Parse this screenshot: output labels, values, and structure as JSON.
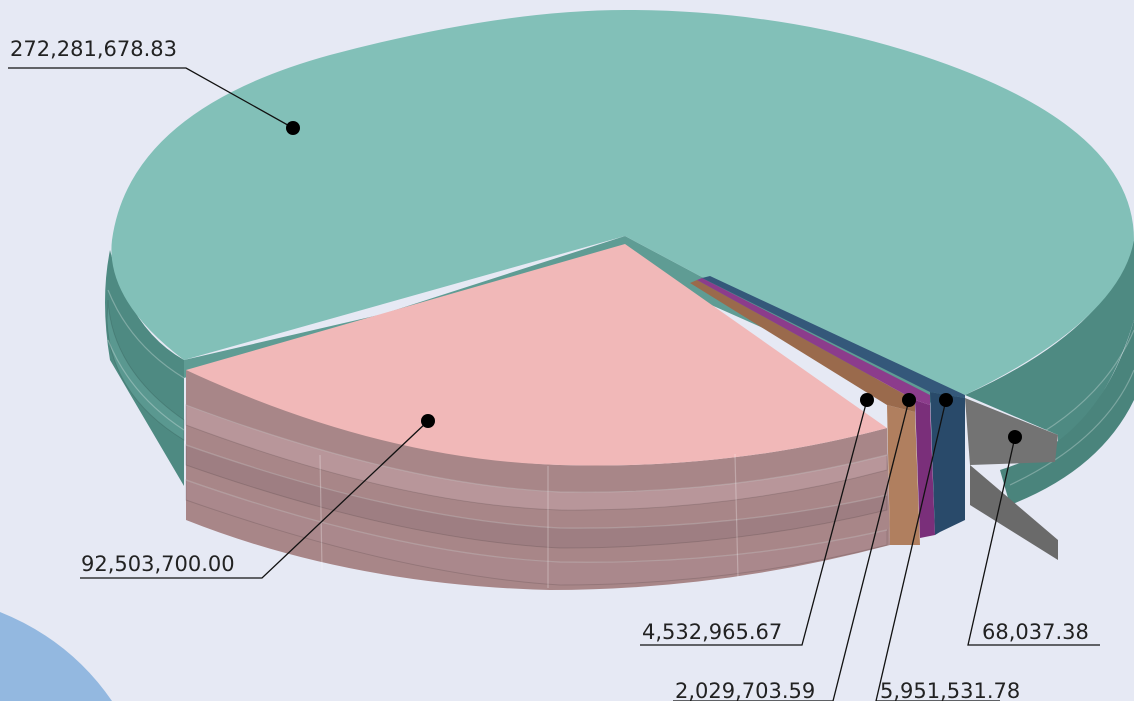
{
  "chart_data": {
    "type": "pie",
    "style": "3d-exploded",
    "title": "",
    "slices": [
      {
        "label": "272,281,678.83",
        "value": 272281678.83,
        "color": "#82c0b8"
      },
      {
        "label": "92,503,700.00",
        "value": 92503700.0,
        "color": "#f1b8b8"
      },
      {
        "label": "4,532,965.67",
        "value": 4532965.67,
        "color": "#b07f5f"
      },
      {
        "label": "2,029,703.59",
        "value": 2029703.59,
        "color": "#7a2f7a"
      },
      {
        "label": "5,951,531.78",
        "value": 5951531.78,
        "color": "#294a6a"
      },
      {
        "label": "68,037.38",
        "value": 68037.38,
        "color": "#6a6a6a"
      }
    ],
    "legend": "none",
    "background_color": "#e6e9f4"
  }
}
